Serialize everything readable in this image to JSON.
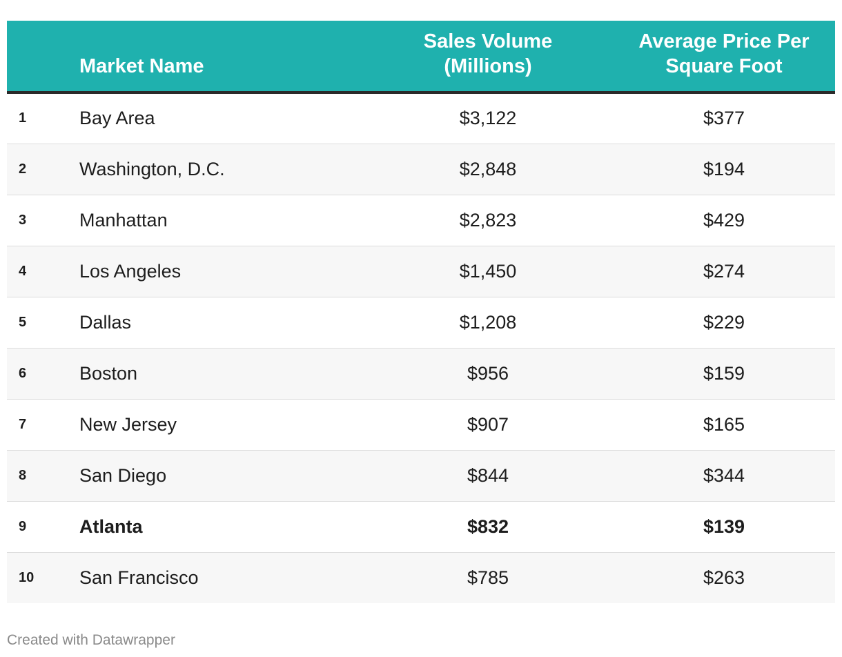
{
  "chart_data": {
    "type": "table",
    "columns": [
      "",
      "Market Name",
      "Sales Volume (Millions)",
      "Average Price Per Square Foot"
    ],
    "header": {
      "rank": "",
      "name": "Market Name",
      "volume_line1": "Sales Volume",
      "volume_line2": "(Millions)",
      "price_line1": "Average Price Per",
      "price_line2": "Square Foot"
    },
    "rows": [
      {
        "rank": "1",
        "name": "Bay Area",
        "volume": "$3,122",
        "price": "$377"
      },
      {
        "rank": "2",
        "name": "Washington, D.C.",
        "volume": "$2,848",
        "price": "$194"
      },
      {
        "rank": "3",
        "name": "Manhattan",
        "volume": "$2,823",
        "price": "$429"
      },
      {
        "rank": "4",
        "name": "Los Angeles",
        "volume": "$1,450",
        "price": "$274"
      },
      {
        "rank": "5",
        "name": "Dallas",
        "volume": "$1,208",
        "price": "$229"
      },
      {
        "rank": "6",
        "name": "Boston",
        "volume": "$956",
        "price": "$159"
      },
      {
        "rank": "7",
        "name": "New Jersey",
        "volume": "$907",
        "price": "$165"
      },
      {
        "rank": "8",
        "name": "San Diego",
        "volume": "$844",
        "price": "$344"
      },
      {
        "rank": "9",
        "name": "Atlanta",
        "volume": "$832",
        "price": "$139",
        "highlighted": true
      },
      {
        "rank": "10",
        "name": "San Francisco",
        "volume": "$785",
        "price": "$263"
      }
    ]
  },
  "footer": {
    "credit": "Created with Datawrapper"
  },
  "colors": {
    "header_bg": "#1fb1ae",
    "header_text": "#ffffff",
    "stripe": "#f7f7f7"
  }
}
